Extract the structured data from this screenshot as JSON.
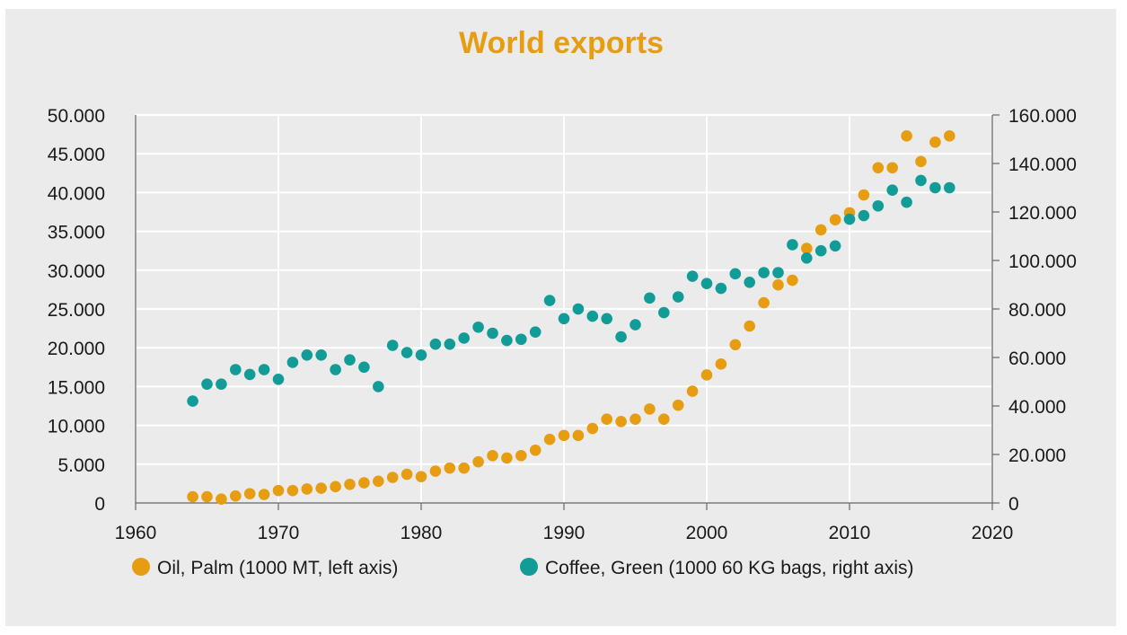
{
  "chart_data": {
    "type": "scatter",
    "title": "World exports",
    "xlim": [
      1960,
      2020
    ],
    "x_ticks": [
      "1960",
      "1970",
      "1980",
      "1990",
      "2000",
      "2010",
      "2020"
    ],
    "y_left": {
      "range": [
        0,
        50000
      ],
      "ticks": [
        "0",
        "5.000",
        "10.000",
        "15.000",
        "20.000",
        "25.000",
        "30.000",
        "35.000",
        "40.000",
        "45.000",
        "50.000"
      ]
    },
    "y_right": {
      "range": [
        0,
        160000
      ],
      "ticks": [
        "0",
        "20.000",
        "40.000",
        "60.000",
        "80.000",
        "100.000",
        "120.000",
        "140.000",
        "160.000"
      ]
    },
    "grid": true,
    "legend_position": "bottom",
    "x": [
      1964,
      1965,
      1966,
      1967,
      1968,
      1969,
      1970,
      1971,
      1972,
      1973,
      1974,
      1975,
      1976,
      1977,
      1978,
      1979,
      1980,
      1981,
      1982,
      1983,
      1984,
      1985,
      1986,
      1987,
      1988,
      1989,
      1990,
      1991,
      1992,
      1993,
      1994,
      1995,
      1996,
      1997,
      1998,
      1999,
      2000,
      2001,
      2002,
      2003,
      2004,
      2005,
      2006,
      2007,
      2008,
      2009,
      2010,
      2011,
      2012,
      2013,
      2014,
      2015,
      2016,
      2017
    ],
    "series": [
      {
        "name": "Oil, Palm (1000 MT, left axis)",
        "axis": "left",
        "color": "#e69d12",
        "values": [
          800,
          800,
          500,
          900,
          1200,
          1100,
          1600,
          1600,
          1800,
          1900,
          2100,
          2400,
          2600,
          2800,
          3300,
          3700,
          3400,
          4100,
          4500,
          4500,
          5300,
          6100,
          5800,
          6100,
          6800,
          8200,
          8700,
          8700,
          9600,
          10800,
          10500,
          10800,
          12100,
          10800,
          12600,
          14400,
          16500,
          17900,
          20400,
          22800,
          25800,
          28100,
          28700,
          32800,
          35200,
          36500,
          37400,
          39700,
          43200,
          43200,
          47300,
          44000,
          46500,
          47300
        ]
      },
      {
        "name": "Coffee, Green (1000 60 KG bags, right axis)",
        "axis": "right",
        "color": "#129c97",
        "values": [
          42000,
          49000,
          49000,
          55000,
          53000,
          55000,
          51000,
          58000,
          61000,
          61000,
          55000,
          59000,
          56000,
          48000,
          65000,
          62000,
          61000,
          65500,
          65500,
          68000,
          72500,
          70000,
          67000,
          67500,
          70500,
          83500,
          76000,
          80000,
          77000,
          76000,
          68500,
          73500,
          84500,
          78500,
          85000,
          93500,
          90500,
          88500,
          94500,
          91000,
          95000,
          95000,
          106500,
          101000,
          104000,
          106000,
          117000,
          118500,
          122500,
          129000,
          124000,
          133000,
          130000,
          130000
        ]
      }
    ]
  }
}
